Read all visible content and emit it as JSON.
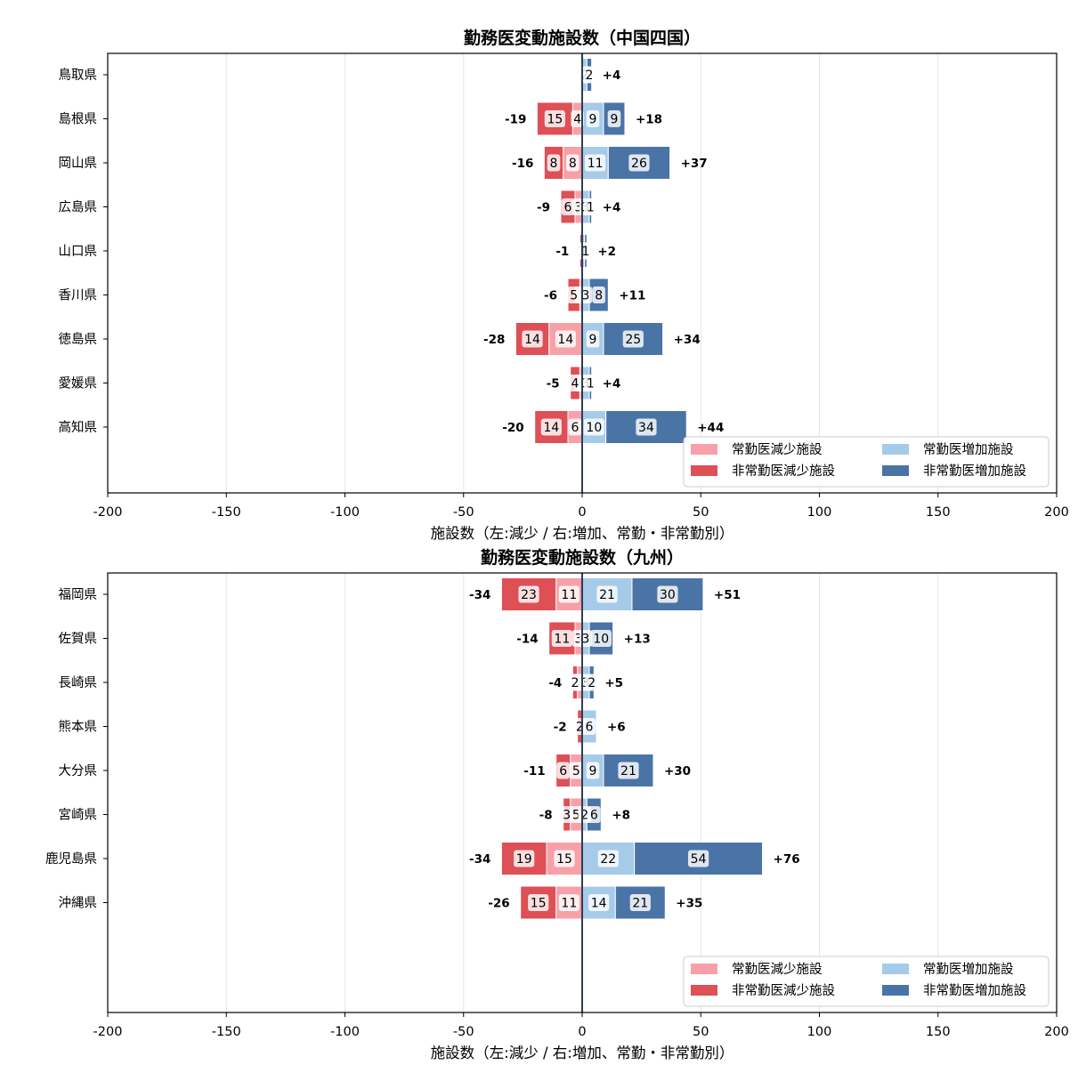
{
  "colors": {
    "joukin_decrease": "#f7a0a8",
    "hijoukin_decrease": "#de4f56",
    "joukin_increase": "#a6cbe8",
    "hijoukin_increase": "#4b74a6",
    "zero_line": "#2d3e55",
    "grid": "#e6e6e6"
  },
  "chart_data": [
    {
      "type": "bar",
      "orientation": "horizontal-diverging-stacked",
      "title": "勤務医変動施設数（中国四国）",
      "xlabel": "施設数（左:減少 / 右:増加、常勤・非常勤別）",
      "xlim": [
        -200,
        200
      ],
      "xticks": [
        -200,
        -150,
        -100,
        -50,
        0,
        50,
        100,
        150,
        200
      ],
      "xtick_labels": [
        "-200",
        "-150",
        "-100",
        "-50",
        "0",
        "50",
        "100",
        "150",
        "200"
      ],
      "grid": true,
      "legend_position": "bottom-right",
      "legend": [
        "常勤医減少施設",
        "非常勤医減少施設",
        "常勤医増加施設",
        "非常勤医増加施設"
      ],
      "categories": [
        "鳥取県",
        "島根県",
        "岡山県",
        "広島県",
        "山口県",
        "香川県",
        "徳島県",
        "愛媛県",
        "高知県"
      ],
      "joukin_decrease": [
        0,
        4,
        8,
        3,
        0,
        1,
        14,
        1,
        6
      ],
      "hijoukin_decrease": [
        0,
        15,
        8,
        6,
        1,
        5,
        14,
        4,
        14
      ],
      "joukin_increase": [
        2,
        9,
        11,
        3,
        1,
        3,
        9,
        3,
        10
      ],
      "hijoukin_increase": [
        2,
        9,
        26,
        1,
        1,
        8,
        25,
        1,
        34
      ],
      "decrease_totals": [
        "",
        "-19",
        "-16",
        "-9",
        "-1",
        "-6",
        "-28",
        "-5",
        "-20"
      ],
      "increase_totals": [
        "+4",
        "+18",
        "+37",
        "+4",
        "+2",
        "+11",
        "+34",
        "+4",
        "+44"
      ]
    },
    {
      "type": "bar",
      "orientation": "horizontal-diverging-stacked",
      "title": "勤務医変動施設数（九州）",
      "xlabel": "施設数（左:減少 / 右:増加、常勤・非常勤別）",
      "xlim": [
        -200,
        200
      ],
      "xticks": [
        -200,
        -150,
        -100,
        -50,
        0,
        50,
        100,
        150,
        200
      ],
      "xtick_labels": [
        "-200",
        "-150",
        "-100",
        "-50",
        "0",
        "50",
        "100",
        "150",
        "200"
      ],
      "grid": true,
      "legend_position": "bottom-right",
      "legend": [
        "常勤医減少施設",
        "非常勤医減少施設",
        "常勤医増加施設",
        "非常勤医増加施設"
      ],
      "categories": [
        "福岡県",
        "佐賀県",
        "長崎県",
        "熊本県",
        "大分県",
        "宮崎県",
        "鹿児島県",
        "沖縄県"
      ],
      "joukin_decrease": [
        11,
        3,
        2,
        0,
        5,
        5,
        15,
        11
      ],
      "hijoukin_decrease": [
        23,
        11,
        2,
        2,
        6,
        3,
        19,
        15
      ],
      "joukin_increase": [
        21,
        3,
        3,
        6,
        9,
        2,
        22,
        14
      ],
      "hijoukin_increase": [
        30,
        10,
        2,
        0,
        21,
        6,
        54,
        21
      ],
      "decrease_totals": [
        "-34",
        "-14",
        "-4",
        "-2",
        "-11",
        "-8",
        "-34",
        "-26"
      ],
      "increase_totals": [
        "+51",
        "+13",
        "+5",
        "+6",
        "+30",
        "+8",
        "+76",
        "+35"
      ]
    }
  ]
}
